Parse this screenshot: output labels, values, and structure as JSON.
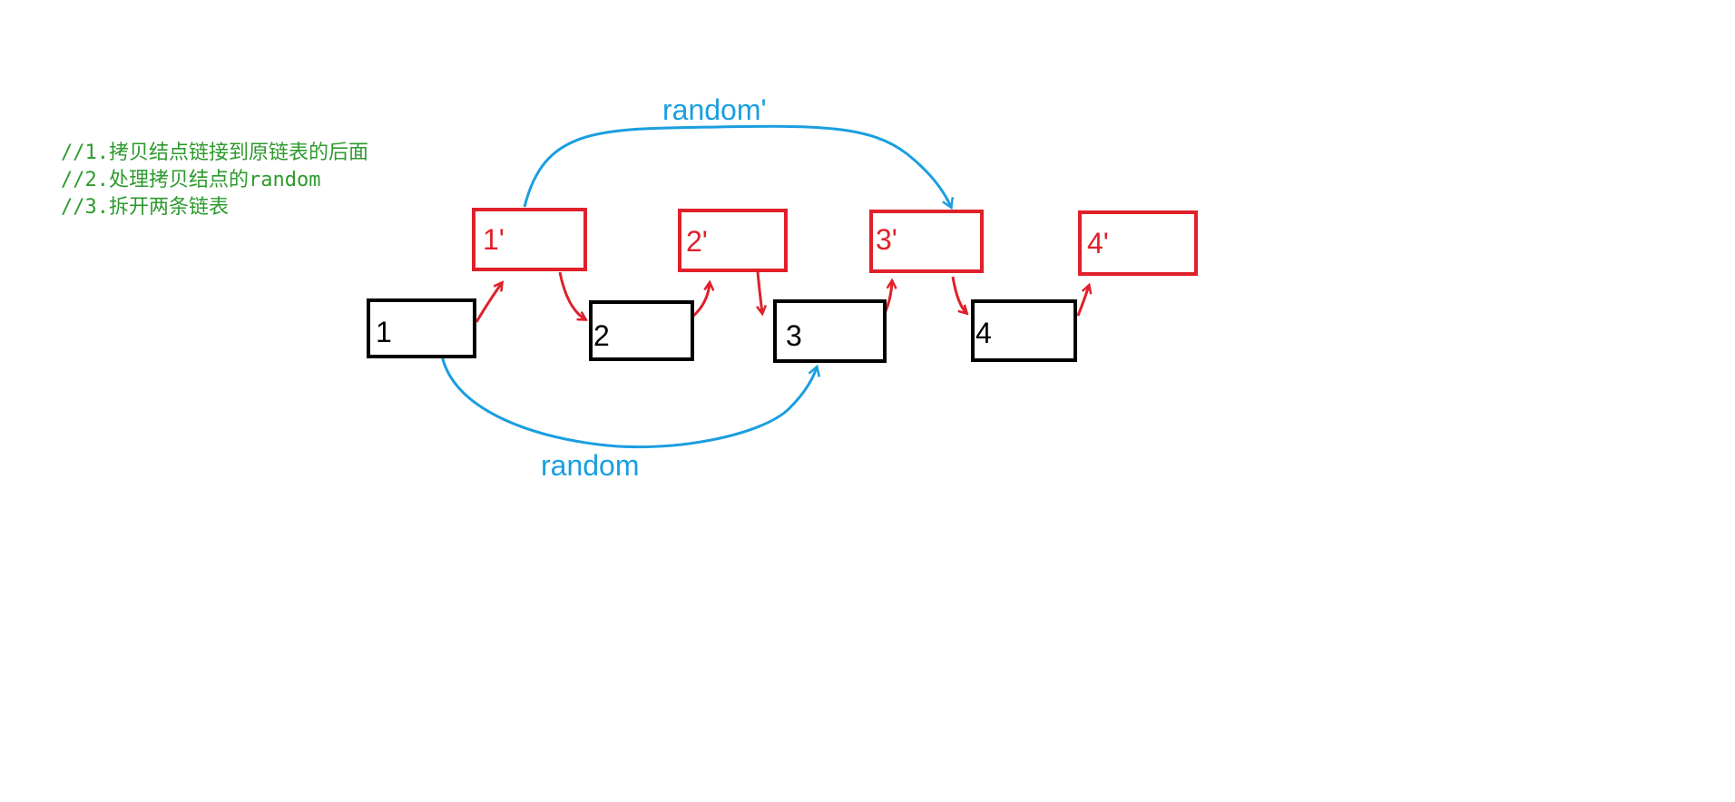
{
  "comments": [
    "//1.拷贝结点链接到原链表的后面",
    "//2.处理拷贝结点的random",
    "//3.拆开两条链表"
  ],
  "colors": {
    "original": "#000000",
    "copy": "#e0202a",
    "random": "#1a9ee0",
    "comment": "#2e9a2e"
  },
  "original_nodes": [
    {
      "id": "n1",
      "label": "1"
    },
    {
      "id": "n2",
      "label": "2"
    },
    {
      "id": "n3",
      "label": "3"
    },
    {
      "id": "n4",
      "label": "4"
    }
  ],
  "copy_nodes": [
    {
      "id": "c1",
      "label": "1'"
    },
    {
      "id": "c2",
      "label": "2'"
    },
    {
      "id": "c3",
      "label": "3'"
    },
    {
      "id": "c4",
      "label": "4'"
    }
  ],
  "random_edges": [
    {
      "from": "n1",
      "to": "n3",
      "label": "random"
    },
    {
      "from": "c1",
      "to": "c3",
      "label": "random'"
    }
  ]
}
